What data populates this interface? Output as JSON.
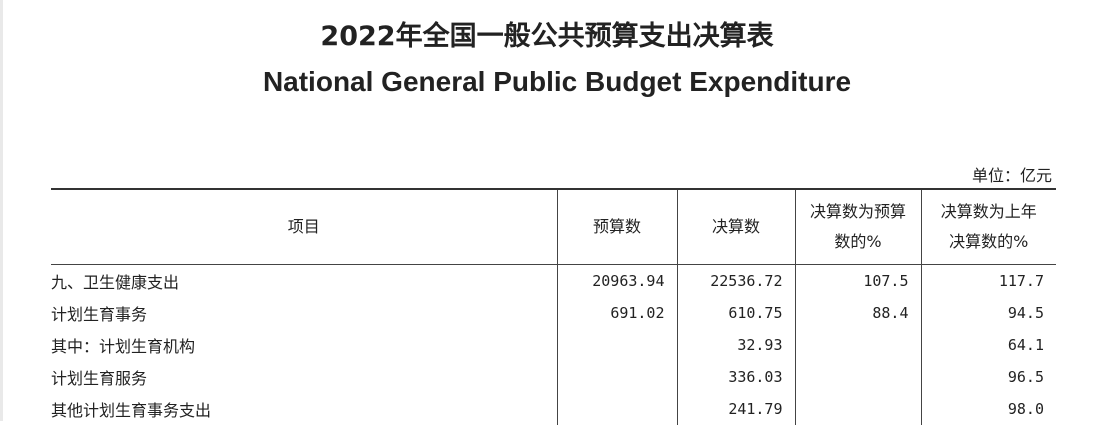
{
  "title_cn": "2022年全国一般公共预算支出决算表",
  "title_en": "National General Public Budget Expenditure",
  "unit": "单位：亿元",
  "table": {
    "headers": [
      "项目",
      "预算数",
      "决算数",
      "决算数为预算数的%",
      "决算数为上年决算数的%"
    ],
    "rows": [
      {
        "item": "九、卫生健康支出",
        "budget": "20963.94",
        "final": "22536.72",
        "pct_budget": "107.5",
        "pct_prev": "117.7"
      },
      {
        "item": "计划生育事务",
        "budget": "691.02",
        "final": "610.75",
        "pct_budget": "88.4",
        "pct_prev": "94.5"
      },
      {
        "item": "其中：计划生育机构",
        "budget": "",
        "final": "32.93",
        "pct_budget": "",
        "pct_prev": "64.1"
      },
      {
        "item": "计划生育服务",
        "budget": "",
        "final": "336.03",
        "pct_budget": "",
        "pct_prev": "96.5"
      },
      {
        "item": "其他计划生育事务支出",
        "budget": "",
        "final": "241.79",
        "pct_budget": "",
        "pct_prev": "98.0"
      }
    ]
  }
}
